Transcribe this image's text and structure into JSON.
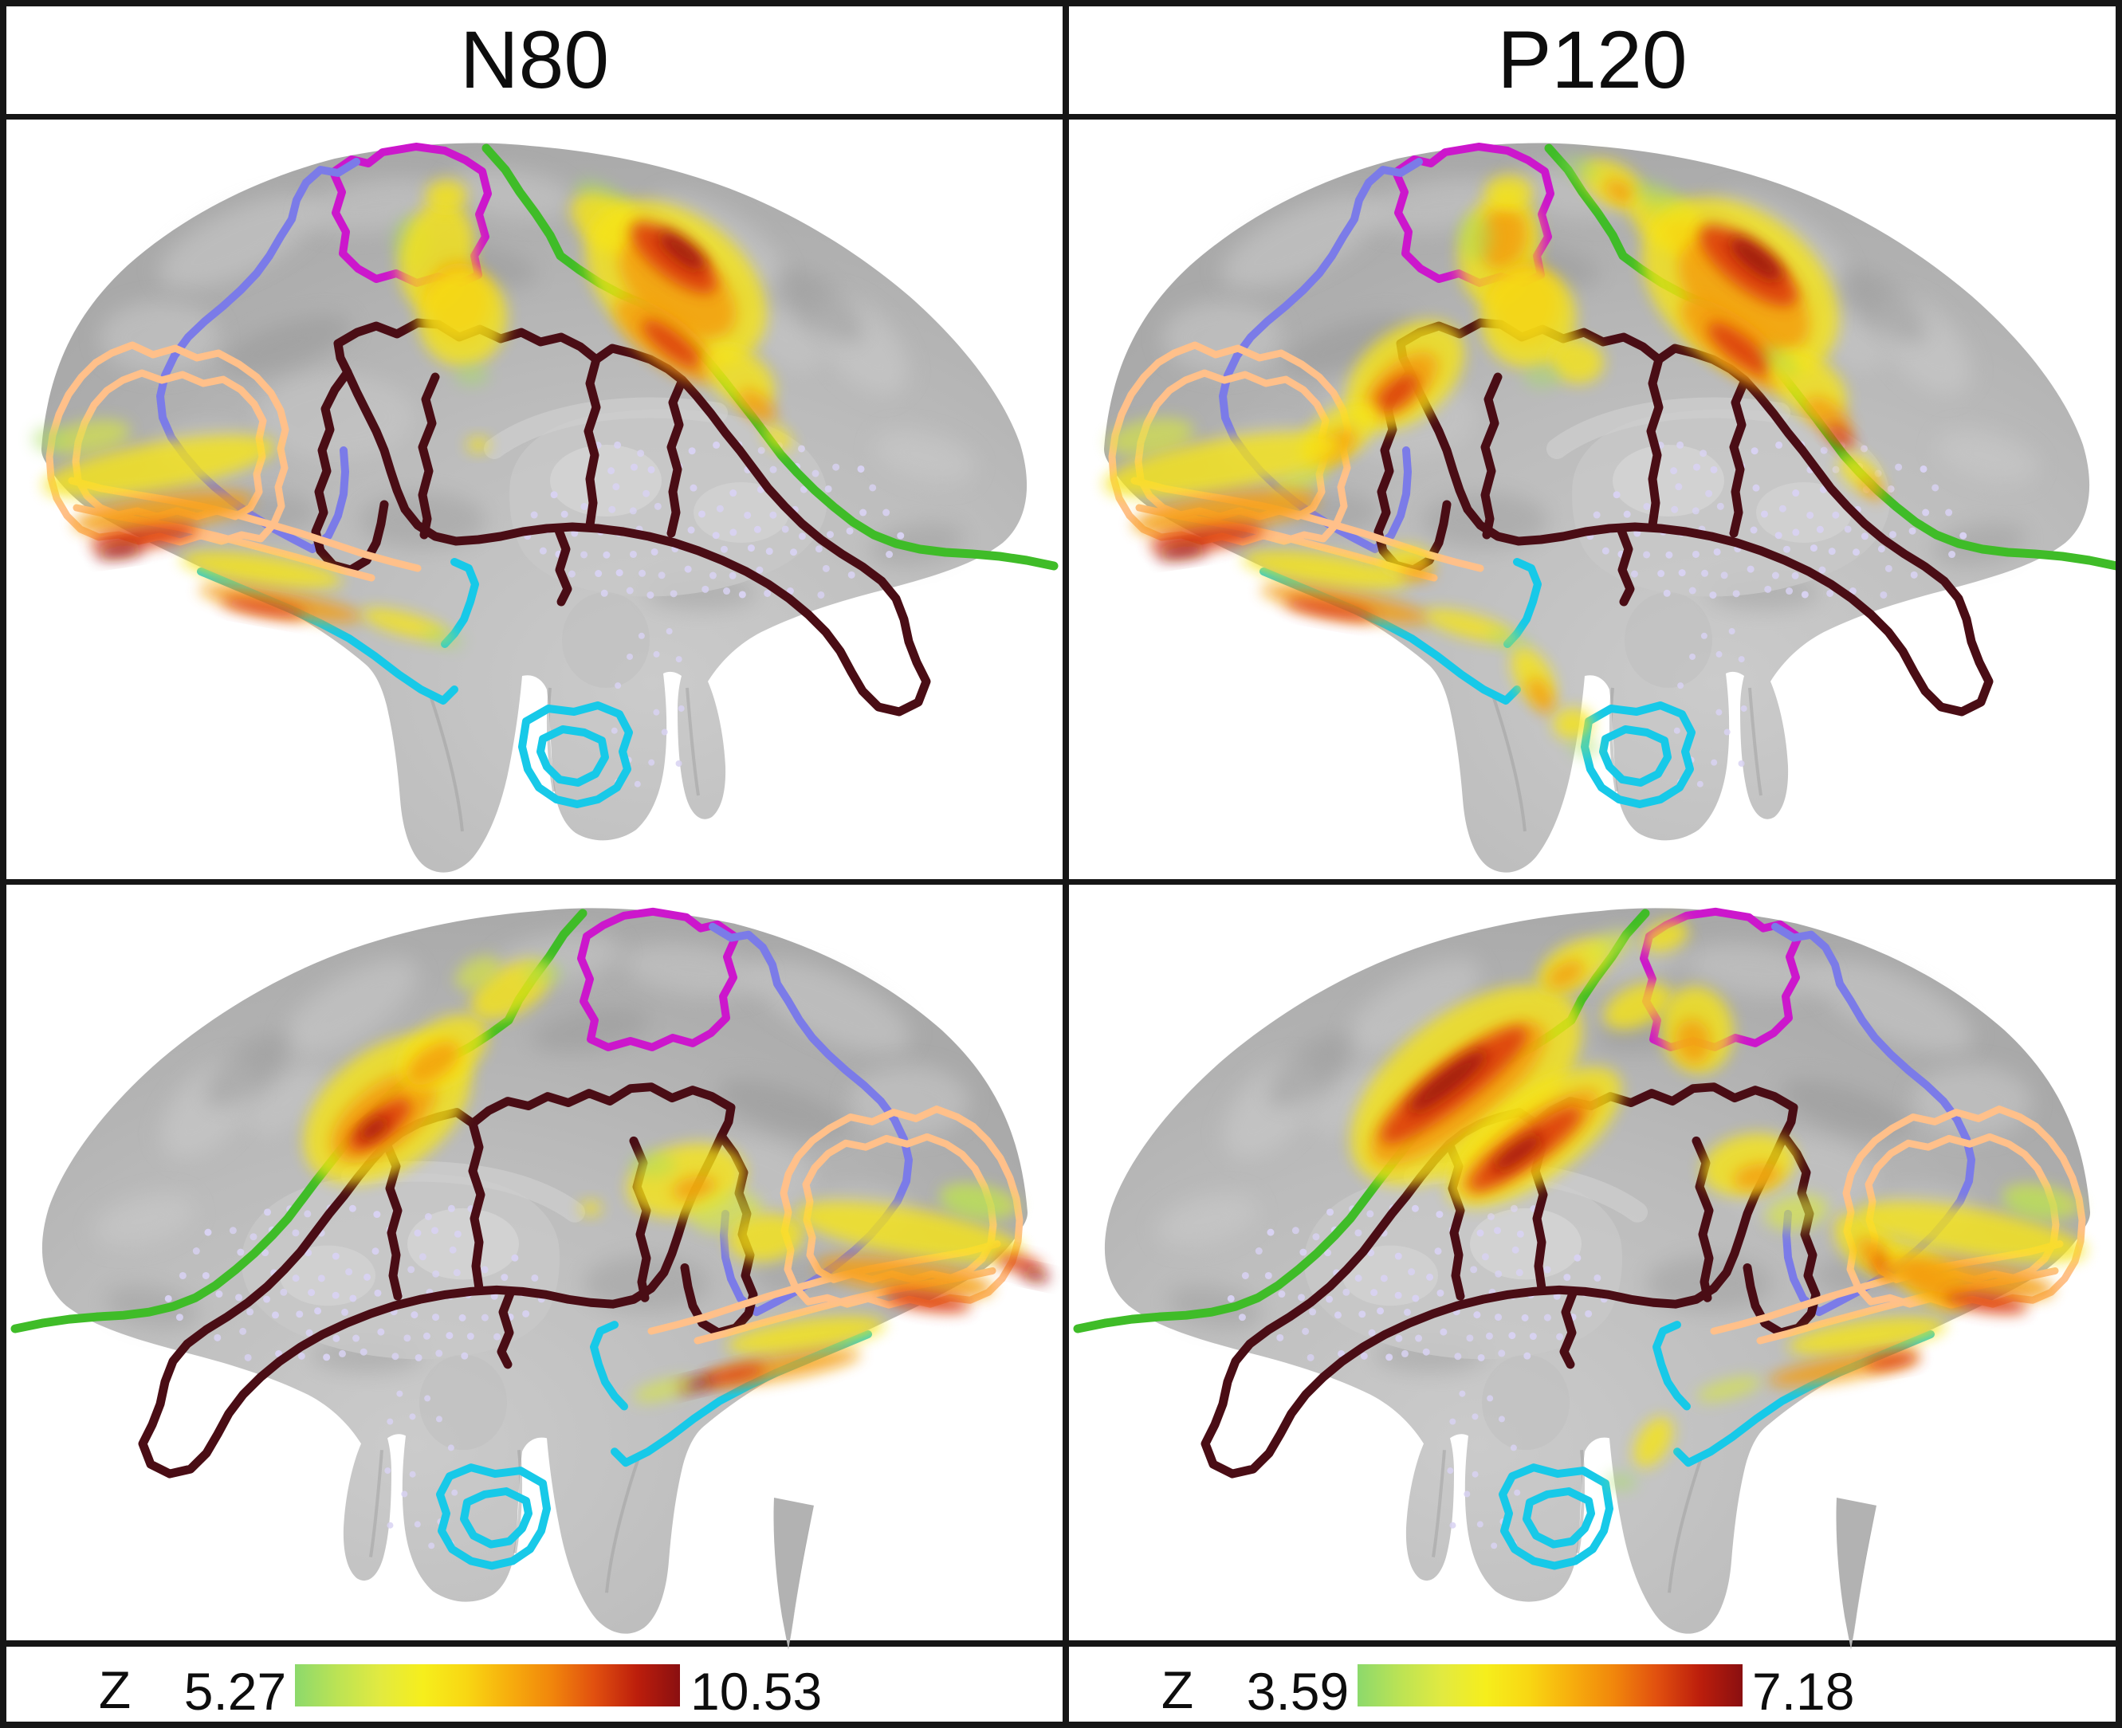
{
  "columns": [
    {
      "label": "N80",
      "colorbar": {
        "label": "Z",
        "min": "5.27",
        "max": "10.53"
      }
    },
    {
      "label": "P120",
      "colorbar": {
        "label": "Z",
        "min": "3.59",
        "max": "7.18"
      }
    }
  ],
  "colorbar_gradient": [
    "#8CD96C",
    "#BCE354",
    "#E2EA40",
    "#F6EE1C",
    "#F8D713",
    "#F7AE0D",
    "#F1860C",
    "#E1500F",
    "#BC1E0C",
    "#8A0F10"
  ],
  "regions": [
    {
      "name": "paracentral-outline",
      "color": "#CC17CC"
    },
    {
      "name": "superior-frontal-outline",
      "color": "#7B7BE8"
    },
    {
      "name": "parieto-occipital-outline",
      "color": "#3FBC28"
    },
    {
      "name": "cingulate-outline",
      "color": "#4A0D15"
    },
    {
      "name": "orbitofrontal-outline",
      "color": "#FFC08A"
    },
    {
      "name": "temporal-outline",
      "color": "#17C9E8"
    }
  ],
  "heat_palette": {
    "fringe": "#A6DF5E",
    "yellowgreen": "#D8E83A",
    "yellow": "#F6E414",
    "orange": "#F49D0E",
    "red": "#DC3B0D",
    "darkred": "#9A120B"
  },
  "electrodes": {
    "dot_color": "#D8D2F2"
  },
  "brain": {
    "surface": "#B1B1B1",
    "highlight": "#CDCDCD",
    "cut_surface": "#C8C8C8"
  }
}
